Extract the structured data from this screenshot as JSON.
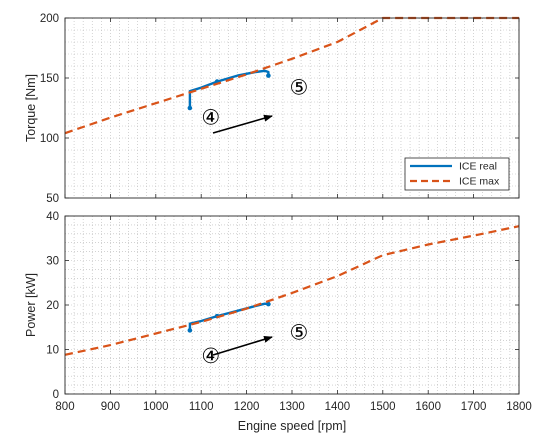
{
  "chart_data": [
    {
      "type": "line",
      "ylabel": "Torque [Nm]",
      "xlabel": "",
      "xlim": [
        800,
        1800
      ],
      "ylim": [
        50,
        200
      ],
      "xticks": [
        800,
        900,
        1000,
        1100,
        1200,
        1300,
        1400,
        1500,
        1600,
        1700,
        1800
      ],
      "yticks": [
        50,
        100,
        150,
        200
      ],
      "grid": true,
      "legend_position": "bottom-right",
      "series": [
        {
          "name": "ICE real",
          "color": "#0072BD",
          "style": "solid",
          "x": [
            1075,
            1075,
            1075,
            1100,
            1135,
            1180,
            1220,
            1240,
            1248,
            1248
          ],
          "y": [
            125,
            132,
            139,
            142,
            147,
            152,
            155,
            156,
            155,
            152
          ]
        },
        {
          "name": "ICE max",
          "color": "#D95319",
          "style": "dashed",
          "x": [
            800,
            900,
            1000,
            1100,
            1200,
            1300,
            1400,
            1450,
            1500,
            1600,
            1700,
            1800
          ],
          "y": [
            104,
            117,
            129,
            141,
            153,
            166,
            180,
            190,
            200,
            200,
            200,
            200
          ]
        }
      ],
      "annotations": [
        {
          "label": "④",
          "x": 1085,
          "y": 117
        },
        {
          "label": "⑤",
          "x": 1290,
          "y": 137
        }
      ]
    },
    {
      "type": "line",
      "ylabel": "Power [kW]",
      "xlabel": "Engine speed [rpm]",
      "xlim": [
        800,
        1800
      ],
      "ylim": [
        0,
        40
      ],
      "xticks": [
        800,
        900,
        1000,
        1100,
        1200,
        1300,
        1400,
        1500,
        1600,
        1700,
        1800
      ],
      "yticks": [
        0,
        10,
        20,
        30,
        40
      ],
      "grid": true,
      "series": [
        {
          "name": "ICE real",
          "color": "#0072BD",
          "style": "solid",
          "x": [
            1075,
            1075,
            1075,
            1100,
            1135,
            1180,
            1220,
            1240,
            1248
          ],
          "y": [
            14.3,
            15.2,
            15.8,
            16.4,
            17.5,
            18.7,
            19.8,
            20.3,
            20.2
          ]
        },
        {
          "name": "ICE max",
          "color": "#D95319",
          "style": "dashed",
          "x": [
            800,
            900,
            1000,
            1100,
            1200,
            1300,
            1400,
            1500,
            1600,
            1700,
            1800
          ],
          "y": [
            8.8,
            11.0,
            13.6,
            16.2,
            19.2,
            22.7,
            26.5,
            31.2,
            33.6,
            35.6,
            37.7
          ]
        }
      ],
      "annotations": [
        {
          "label": "④",
          "x": 1085,
          "y": 8.5
        },
        {
          "label": "⑤",
          "x": 1290,
          "y": 12.5
        }
      ]
    }
  ]
}
